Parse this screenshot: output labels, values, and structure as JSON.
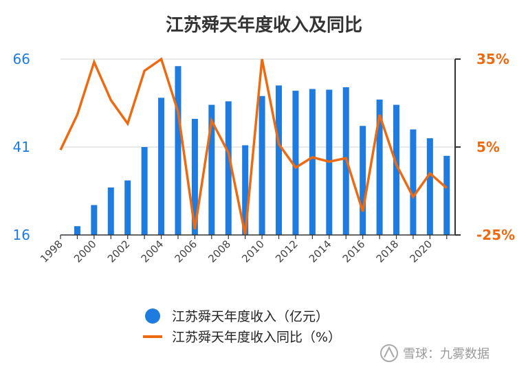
{
  "chart_data": {
    "type": "bar",
    "title": "江苏舜天年度收入及同比",
    "x": [
      1998,
      1999,
      2000,
      2001,
      2002,
      2003,
      2004,
      2005,
      2006,
      2007,
      2008,
      2009,
      2010,
      2011,
      2012,
      2013,
      2014,
      2015,
      2016,
      2017,
      2018,
      2019,
      2020,
      2021
    ],
    "x_tick_labels": [
      "1998",
      "2000",
      "2002",
      "2004",
      "2006",
      "2008",
      "2010",
      "2012",
      "2014",
      "2016",
      "2018",
      "2020"
    ],
    "series": [
      {
        "name": "江苏舜天年度收入（亿元）",
        "type": "bar",
        "axis": "left",
        "color": "#1e7be0",
        "values": [
          16,
          18.5,
          24.5,
          29.5,
          31.5,
          41,
          55,
          64,
          49,
          53,
          54,
          41.5,
          55.5,
          58.5,
          57,
          57.5,
          57.3,
          58,
          47,
          54.5,
          53,
          46,
          43.5,
          38.5
        ]
      },
      {
        "name": "江苏舜天年度收入同比（%）",
        "type": "line",
        "axis": "right",
        "color": "#ee6a10",
        "values": [
          4,
          16,
          34,
          21,
          13,
          31,
          35,
          17,
          -23,
          14,
          3,
          -25,
          35,
          6,
          -2,
          1.5,
          0,
          1.2,
          -17,
          16,
          -1,
          -12,
          -4,
          -9
        ]
      }
    ],
    "y_left": {
      "ticks": [
        "16",
        "41",
        "66"
      ],
      "ylim": [
        16,
        66
      ]
    },
    "y_right": {
      "ticks": [
        "-25%",
        "5%",
        "35%"
      ],
      "ylim": [
        -25,
        35
      ]
    },
    "grid": true,
    "legend_position": "bottom-center",
    "watermark": "雪球：九雾数据"
  }
}
